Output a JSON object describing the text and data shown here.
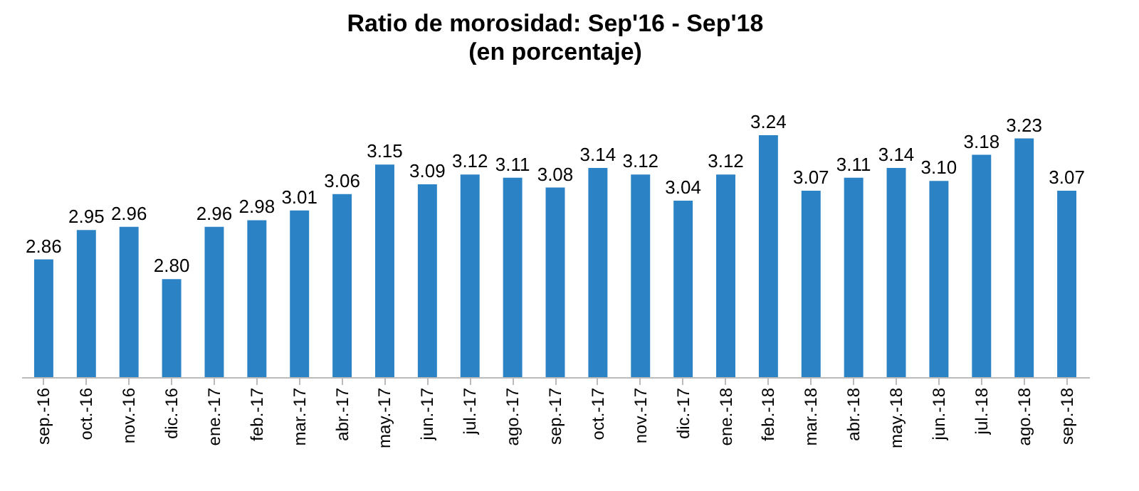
{
  "chart_data": {
    "type": "bar",
    "title": "Ratio de morosidad: Sep'16 - Sep'18",
    "subtitle": "(en porcentaje)",
    "categories": [
      "sep.-16",
      "oct.-16",
      "nov.-16",
      "dic.-16",
      "ene.-17",
      "feb.-17",
      "mar.-17",
      "abr.-17",
      "may.-17",
      "jun.-17",
      "jul.-17",
      "ago.-17",
      "sep.-17",
      "oct.-17",
      "nov.-17",
      "dic.-17",
      "ene.-18",
      "feb.-18",
      "mar.-18",
      "abr.-18",
      "may.-18",
      "jun.-18",
      "jul.-18",
      "ago.-18",
      "sep.-18"
    ],
    "values": [
      2.86,
      2.95,
      2.96,
      2.8,
      2.96,
      2.98,
      3.01,
      3.06,
      3.15,
      3.09,
      3.12,
      3.11,
      3.08,
      3.14,
      3.12,
      3.04,
      3.12,
      3.24,
      3.07,
      3.11,
      3.14,
      3.1,
      3.18,
      3.23,
      3.07
    ],
    "value_labels": [
      "2.86",
      "2.95",
      "2.96",
      "2.80",
      "2.96",
      "2.98",
      "3.01",
      "3.06",
      "3.15",
      "3.09",
      "3.12",
      "3.11",
      "3.08",
      "3.14",
      "3.12",
      "3.04",
      "3.12",
      "3.24",
      "3.07",
      "3.11",
      "3.14",
      "3.10",
      "3.18",
      "3.23",
      "3.07"
    ],
    "color": "#2b83c6",
    "ylim": [
      2.5,
      3.24
    ],
    "tick_labels": "x"
  }
}
